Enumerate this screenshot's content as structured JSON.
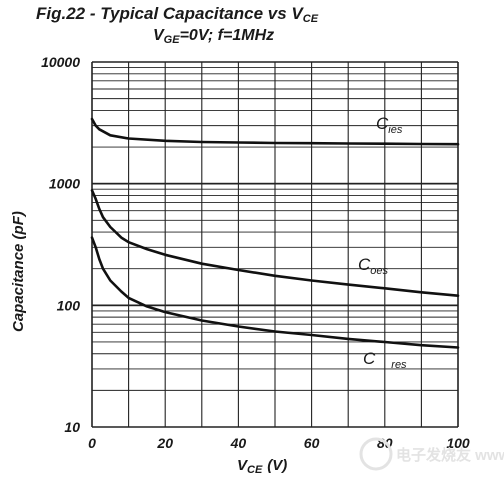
{
  "chart_data": {
    "type": "line",
    "title_main": "Fig.22 - Typical Capacitance vs V",
    "title_main_sub": "CE",
    "subtitle_v": "V",
    "subtitle_sub": "GE",
    "subtitle_rest": "=0V; f=1MHz",
    "xlabel_main": "V",
    "xlabel_sub": "CE",
    "xlabel_unit": "(V)",
    "ylabel": "Capacitance (pF)",
    "scale_y": "log",
    "xlim": [
      0,
      100
    ],
    "ylim": [
      10,
      10000
    ],
    "grid": true,
    "x_tick_labels": [
      "0",
      "20",
      "40",
      "60",
      "80",
      "100"
    ],
    "y_tick_labels": [
      "10",
      "100",
      "1000",
      "10000"
    ],
    "series": [
      {
        "name": "C",
        "name_sub": "ies",
        "x": [
          0,
          1,
          2,
          5,
          10,
          20,
          30,
          40,
          50,
          60,
          70,
          80,
          90,
          100
        ],
        "y": [
          3400,
          3000,
          2800,
          2500,
          2350,
          2250,
          2200,
          2180,
          2160,
          2150,
          2140,
          2130,
          2120,
          2110
        ]
      },
      {
        "name": "C",
        "name_sub": "oes",
        "x": [
          0,
          1,
          2,
          3,
          5,
          8,
          10,
          15,
          20,
          30,
          40,
          50,
          60,
          70,
          80,
          90,
          100
        ],
        "y": [
          880,
          750,
          620,
          530,
          440,
          360,
          330,
          290,
          260,
          220,
          195,
          175,
          160,
          148,
          138,
          128,
          120
        ]
      },
      {
        "name": "C",
        "name_sub": "res",
        "x": [
          0,
          1,
          2,
          3,
          5,
          8,
          10,
          15,
          20,
          30,
          40,
          50,
          60,
          70,
          80,
          90,
          100
        ],
        "y": [
          360,
          300,
          240,
          200,
          160,
          130,
          115,
          98,
          88,
          75,
          67,
          61,
          57,
          53,
          50,
          47,
          45
        ]
      }
    ]
  },
  "watermark": "电子发烧友 www.elecfans.com"
}
